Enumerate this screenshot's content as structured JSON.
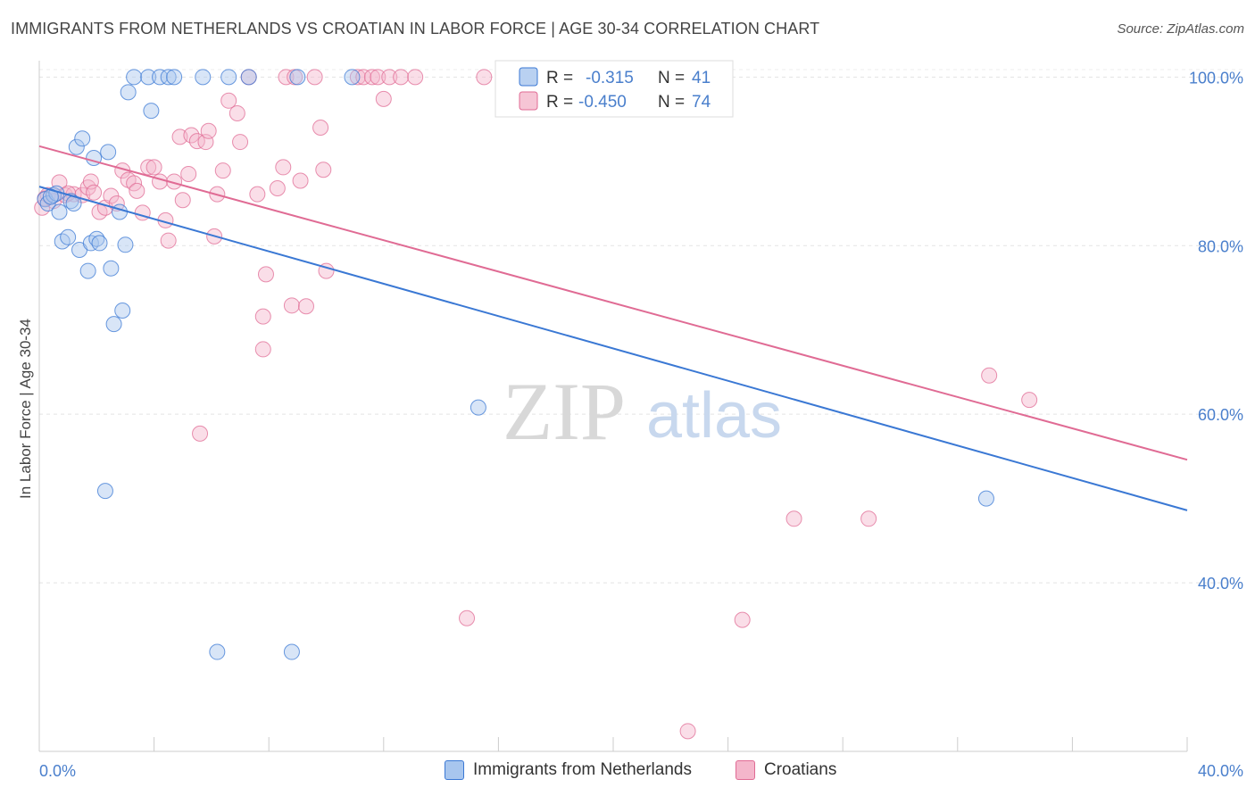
{
  "title": "IMMIGRANTS FROM NETHERLANDS VS CROATIAN IN LABOR FORCE | AGE 30-34 CORRELATION CHART",
  "source": "Source: ZipAtlas.com",
  "watermark": {
    "zip": "ZIP",
    "atlas": "atlas"
  },
  "colors": {
    "blue": "#3a78d4",
    "blue_fill": "#a8c6ee",
    "pink": "#e06b94",
    "pink_fill": "#f4b6cb",
    "tick": "#4a7fcc"
  },
  "legend_top": {
    "rows": [
      {
        "r_label": "R =",
        "r_value": "-0.315",
        "n_label": "N =",
        "n_value": "41"
      },
      {
        "r_label": "R =",
        "r_value": "-0.450",
        "n_label": "N =",
        "n_value": "74"
      }
    ]
  },
  "legend_bottom": [
    {
      "label": "Immigrants from Netherlands"
    },
    {
      "label": "Croatians"
    }
  ],
  "chart_data": {
    "type": "scatter",
    "xlabel": "",
    "ylabel": "In Labor Force | Age 30-34",
    "xlim": [
      0,
      40
    ],
    "ylim": [
      20,
      103
    ],
    "x_tick_labels": [
      "0.0%",
      "40.0%"
    ],
    "y_ticks": [
      40,
      60,
      80,
      100
    ],
    "y_tick_labels": [
      "40.0%",
      "60.0%",
      "80.0%",
      "100.0%"
    ],
    "grid": true,
    "series": [
      {
        "name": "Immigrants from Netherlands",
        "color": "#3a78d4",
        "trend": {
          "x": [
            0,
            40
          ],
          "y": [
            87.0,
            48.6
          ]
        },
        "points": [
          [
            0.2,
            85.5
          ],
          [
            0.3,
            85.0
          ],
          [
            0.5,
            86.0
          ],
          [
            0.6,
            86.2
          ],
          [
            0.7,
            84.0
          ],
          [
            0.8,
            80.5
          ],
          [
            1.0,
            81.0
          ],
          [
            1.1,
            85.3
          ],
          [
            1.2,
            85.0
          ],
          [
            1.3,
            91.7
          ],
          [
            1.4,
            79.5
          ],
          [
            1.5,
            92.7
          ],
          [
            1.7,
            77.0
          ],
          [
            1.8,
            80.3
          ],
          [
            1.9,
            90.4
          ],
          [
            2.0,
            80.8
          ],
          [
            2.1,
            80.3
          ],
          [
            2.4,
            91.1
          ],
          [
            2.5,
            77.3
          ],
          [
            2.6,
            70.7
          ],
          [
            2.8,
            84.0
          ],
          [
            2.9,
            72.3
          ],
          [
            3.0,
            80.1
          ],
          [
            3.1,
            98.2
          ],
          [
            3.3,
            100.0
          ],
          [
            3.8,
            100.0
          ],
          [
            3.9,
            96.0
          ],
          [
            4.2,
            100.0
          ],
          [
            4.5,
            100.0
          ],
          [
            4.7,
            100.0
          ],
          [
            5.7,
            100.0
          ],
          [
            6.6,
            100.0
          ],
          [
            7.3,
            100.0
          ],
          [
            9.0,
            100.0
          ],
          [
            10.9,
            100.0
          ],
          [
            2.3,
            50.9
          ],
          [
            6.2,
            31.8
          ],
          [
            8.8,
            31.8
          ],
          [
            15.3,
            60.8
          ],
          [
            33.0,
            50.0
          ],
          [
            0.4,
            85.8
          ]
        ]
      },
      {
        "name": "Croatians",
        "color": "#e06b94",
        "trend": {
          "x": [
            0,
            40
          ],
          "y": [
            91.8,
            54.6
          ]
        },
        "points": [
          [
            0.1,
            84.5
          ],
          [
            0.3,
            86.0
          ],
          [
            0.5,
            85.3
          ],
          [
            0.7,
            87.5
          ],
          [
            0.9,
            86.0
          ],
          [
            1.2,
            86.1
          ],
          [
            1.5,
            86.0
          ],
          [
            1.7,
            86.9
          ],
          [
            1.8,
            87.6
          ],
          [
            1.9,
            86.3
          ],
          [
            2.1,
            84.0
          ],
          [
            2.3,
            84.5
          ],
          [
            2.5,
            85.9
          ],
          [
            2.7,
            85.0
          ],
          [
            2.9,
            88.9
          ],
          [
            3.1,
            87.8
          ],
          [
            3.3,
            87.4
          ],
          [
            3.4,
            86.5
          ],
          [
            3.6,
            83.9
          ],
          [
            3.8,
            89.3
          ],
          [
            4.0,
            89.3
          ],
          [
            4.2,
            87.6
          ],
          [
            4.4,
            83.0
          ],
          [
            4.5,
            80.6
          ],
          [
            4.7,
            87.6
          ],
          [
            4.9,
            92.9
          ],
          [
            5.0,
            85.4
          ],
          [
            5.2,
            88.5
          ],
          [
            5.3,
            93.1
          ],
          [
            5.5,
            92.4
          ],
          [
            5.8,
            92.3
          ],
          [
            5.9,
            93.6
          ],
          [
            6.1,
            81.1
          ],
          [
            6.2,
            86.1
          ],
          [
            6.4,
            88.9
          ],
          [
            6.6,
            97.2
          ],
          [
            6.9,
            95.7
          ],
          [
            7.0,
            92.3
          ],
          [
            7.3,
            100.0
          ],
          [
            7.6,
            86.1
          ],
          [
            7.8,
            71.6
          ],
          [
            7.8,
            67.7
          ],
          [
            7.9,
            76.6
          ],
          [
            8.3,
            86.8
          ],
          [
            8.5,
            89.3
          ],
          [
            8.6,
            100.0
          ],
          [
            8.8,
            72.9
          ],
          [
            8.9,
            100.0
          ],
          [
            9.1,
            87.7
          ],
          [
            9.3,
            72.8
          ],
          [
            9.6,
            100.0
          ],
          [
            9.8,
            94.0
          ],
          [
            9.9,
            89.0
          ],
          [
            10.0,
            77.0
          ],
          [
            11.1,
            100.0
          ],
          [
            11.3,
            100.0
          ],
          [
            11.6,
            100.0
          ],
          [
            11.8,
            100.0
          ],
          [
            12.0,
            97.4
          ],
          [
            12.2,
            100.0
          ],
          [
            12.6,
            100.0
          ],
          [
            13.1,
            100.0
          ],
          [
            15.5,
            100.0
          ],
          [
            17.8,
            100.0
          ],
          [
            5.6,
            57.7
          ],
          [
            14.9,
            35.8
          ],
          [
            22.6,
            22.4
          ],
          [
            24.5,
            35.6
          ],
          [
            26.3,
            47.6
          ],
          [
            28.9,
            47.6
          ],
          [
            33.1,
            64.6
          ],
          [
            34.5,
            61.7
          ],
          [
            0.2,
            85.6
          ],
          [
            1.0,
            86.2
          ]
        ]
      }
    ]
  }
}
